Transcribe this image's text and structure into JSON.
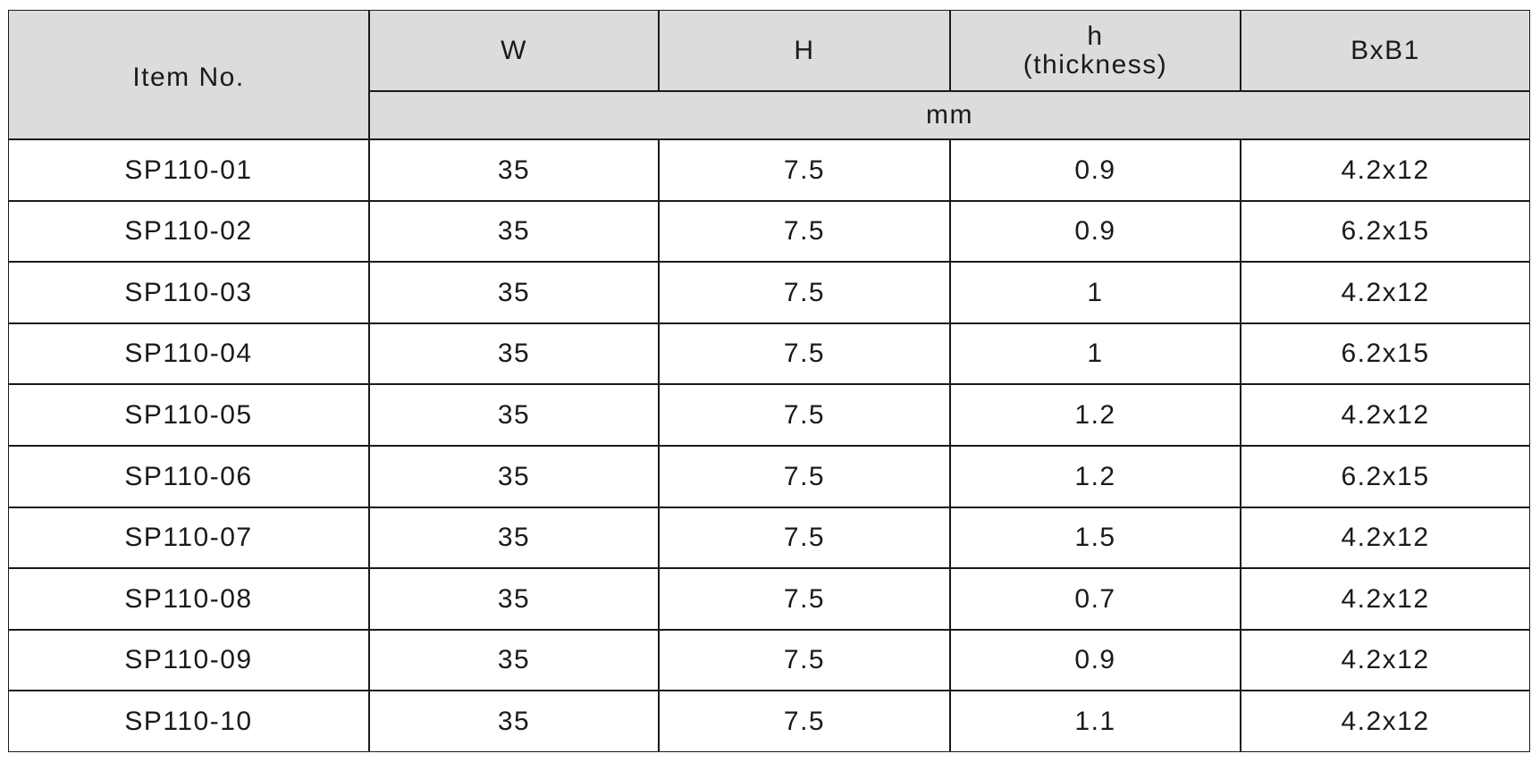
{
  "table": {
    "columns": [
      "Item No.",
      "W",
      "H",
      "h\n(thickness)",
      "BxB1"
    ],
    "unit": "mm",
    "rows": [
      [
        "SP110-01",
        35,
        7.5,
        0.9,
        "4.2x12"
      ],
      [
        "SP110-02",
        35,
        7.5,
        0.9,
        "6.2x15"
      ],
      [
        "SP110-03",
        35,
        7.5,
        1,
        "4.2x12"
      ],
      [
        "SP110-04",
        35,
        7.5,
        1,
        "6.2x15"
      ],
      [
        "SP110-05",
        35,
        7.5,
        1.2,
        "4.2x12"
      ],
      [
        "SP110-06",
        35,
        7.5,
        1.2,
        "6.2x15"
      ],
      [
        "SP110-07",
        35,
        7.5,
        1.5,
        "4.2x12"
      ],
      [
        "SP110-08",
        35,
        7.5,
        0.7,
        "4.2x12"
      ],
      [
        "SP110-09",
        35,
        7.5,
        0.9,
        "4.2x12"
      ],
      [
        "SP110-10",
        35,
        7.5,
        1.1,
        "4.2x12"
      ]
    ]
  }
}
